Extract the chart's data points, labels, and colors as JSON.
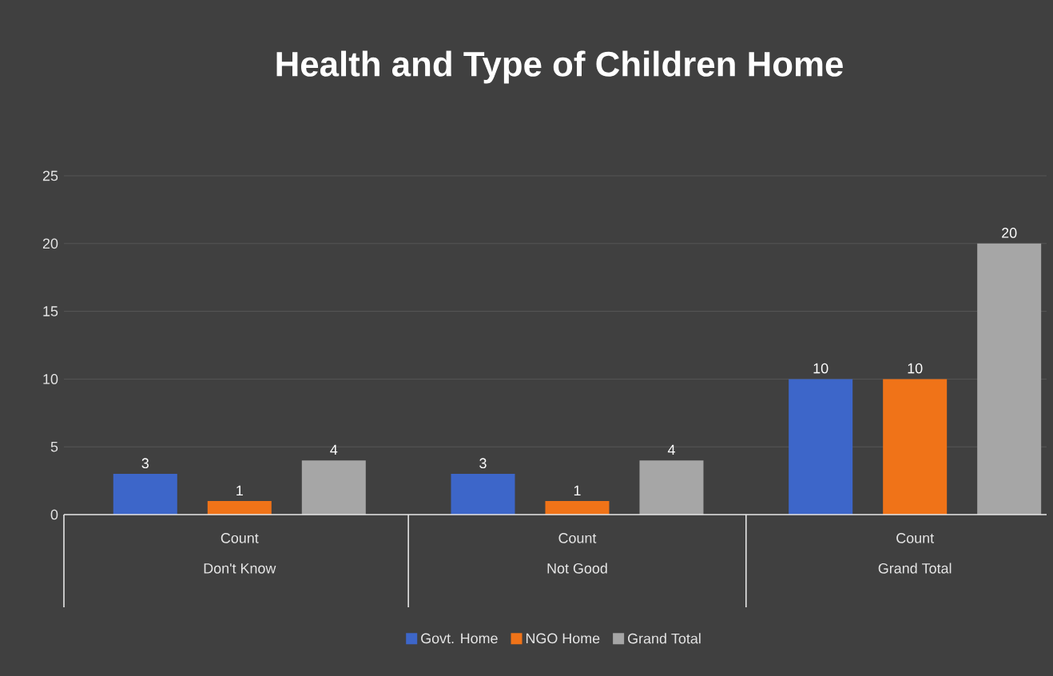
{
  "chart_data": {
    "type": "bar",
    "title": "Health and Type of Children Home",
    "categories": [
      "Don't Know",
      "Not Good",
      "Grand Total"
    ],
    "annotations": [
      "Count",
      "Count",
      "Count"
    ],
    "series": [
      {
        "name": "Govt. Home",
        "color": "#3d66c9",
        "values": [
          3,
          3,
          10
        ]
      },
      {
        "name": "NGO Home",
        "color": "#f07318",
        "values": [
          1,
          1,
          10
        ]
      },
      {
        "name": "Grand Total",
        "color": "#a6a6a6",
        "values": [
          4,
          4,
          20
        ]
      }
    ],
    "ylim": [
      0,
      25
    ],
    "yticks": [
      0,
      5,
      10,
      15,
      20,
      25
    ],
    "grid": "y",
    "legend": "bottom",
    "data_labels": true
  }
}
